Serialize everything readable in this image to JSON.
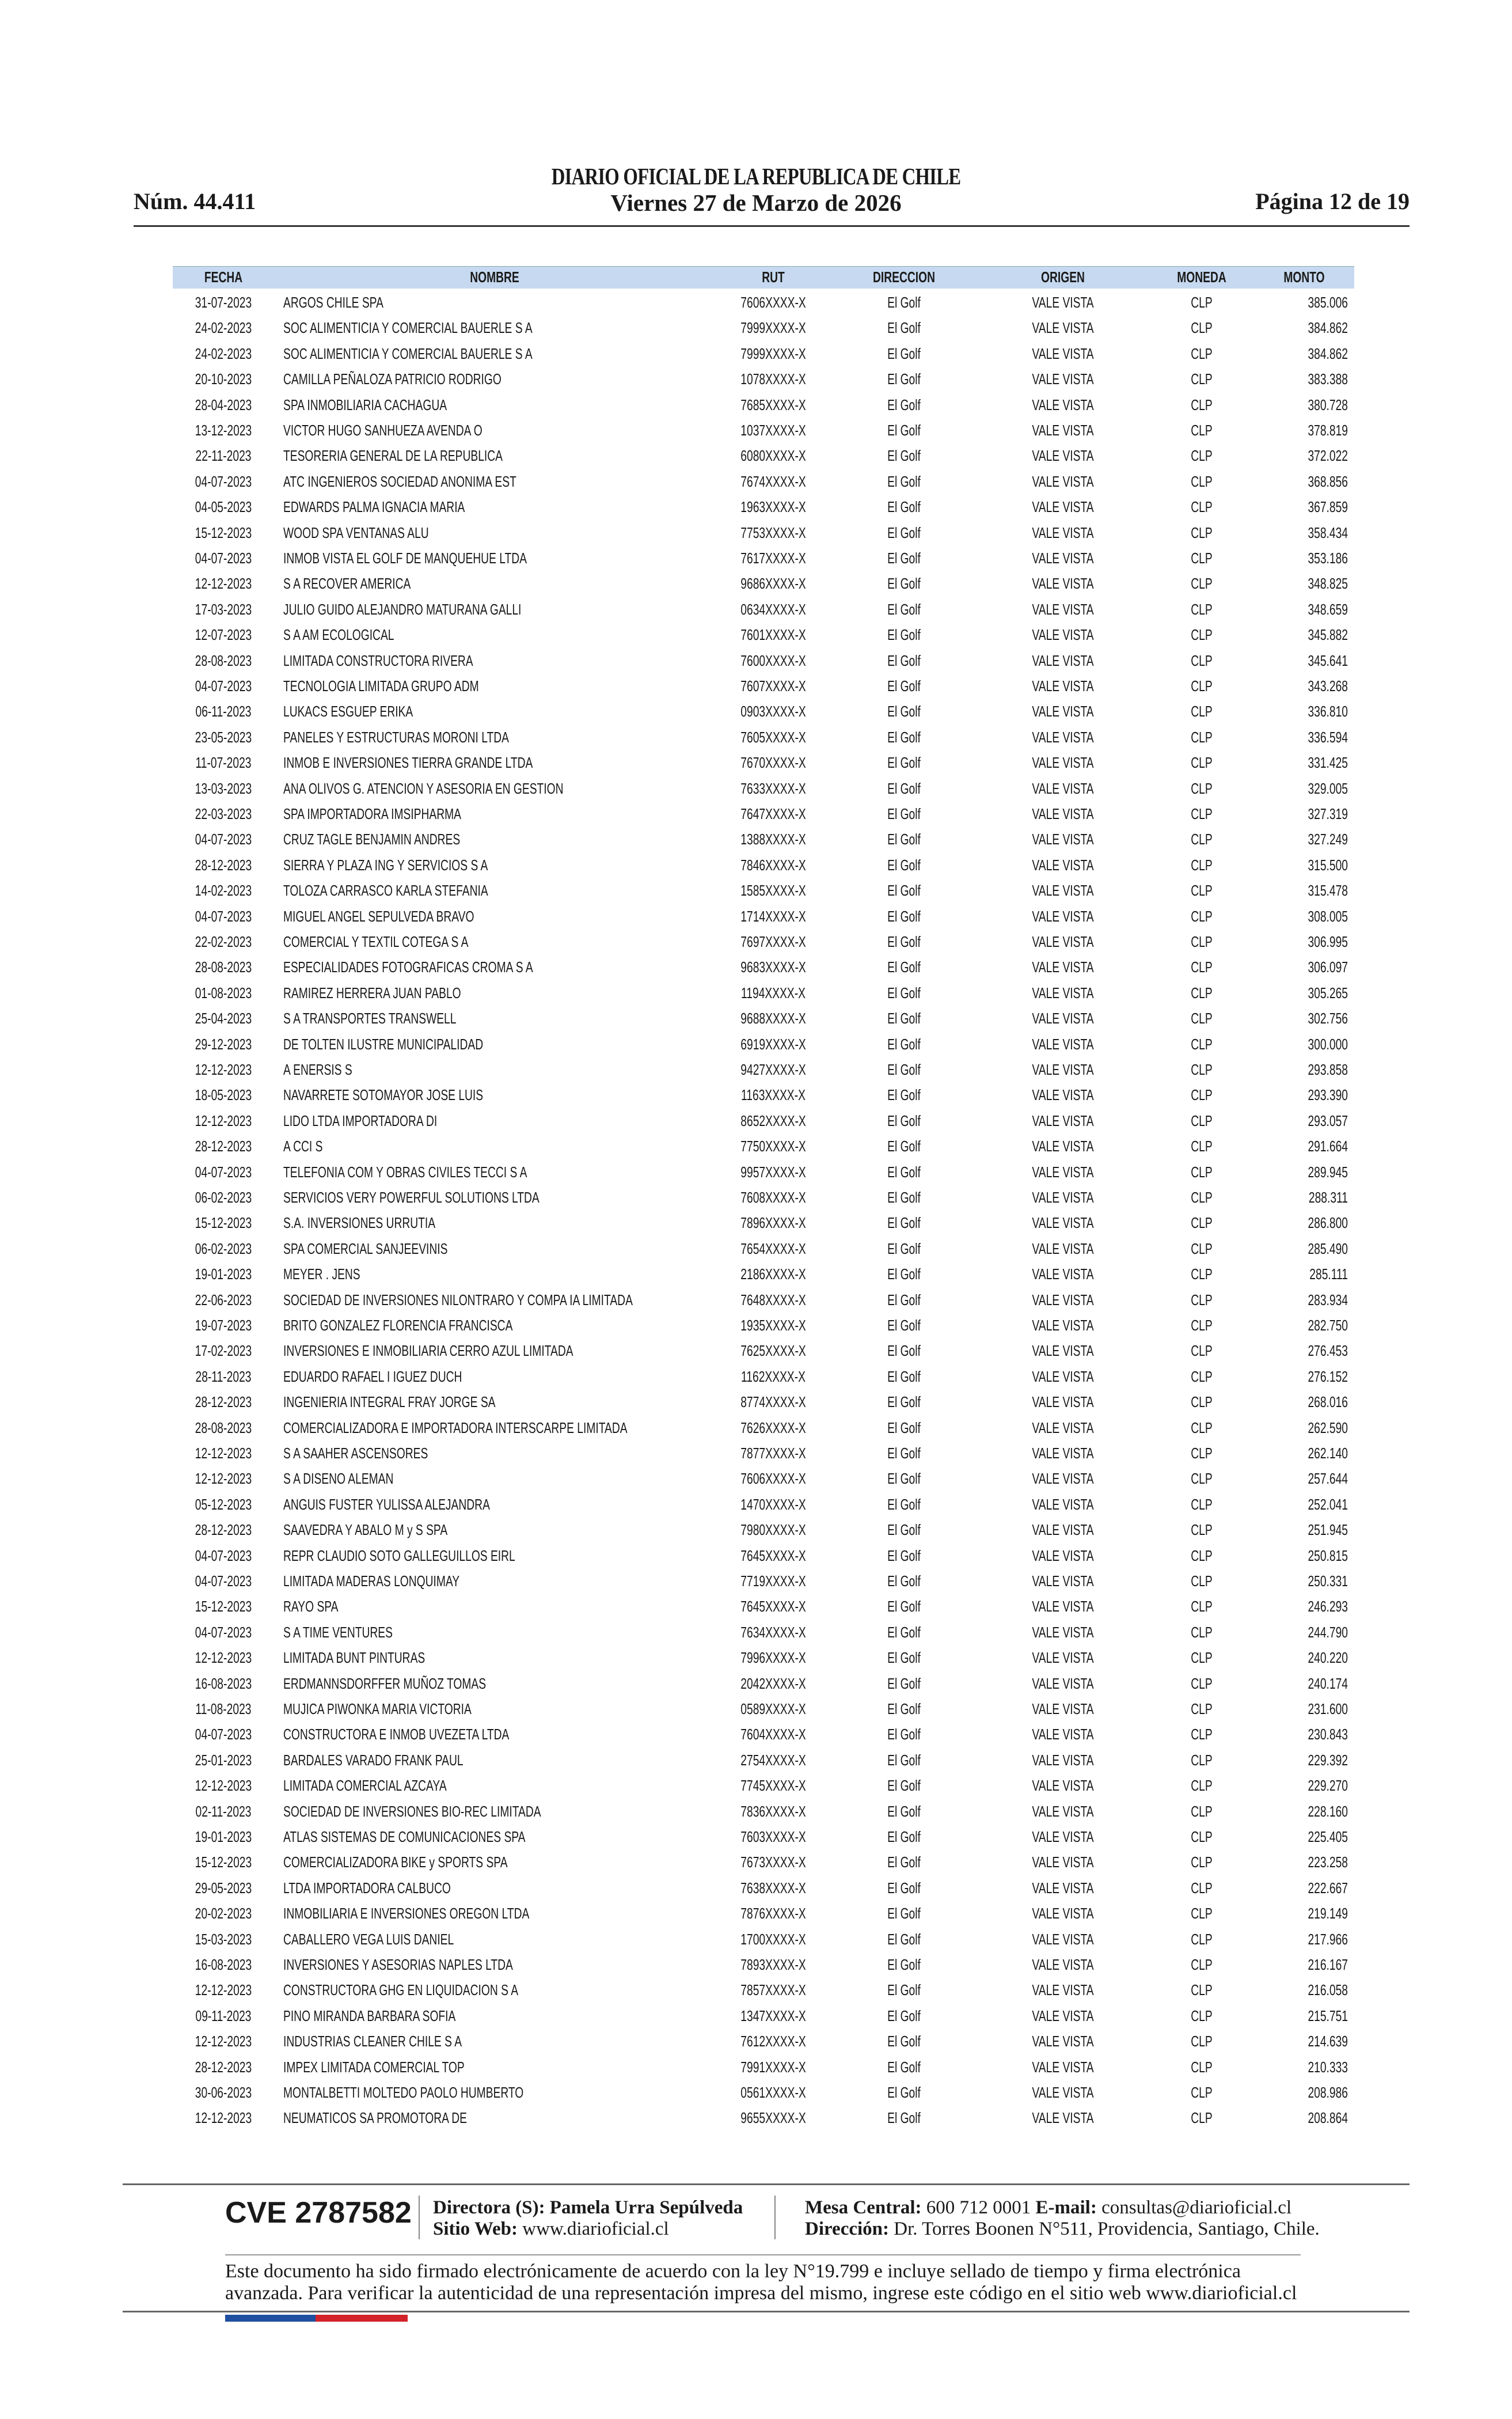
{
  "header": {
    "num": "Núm. 44.411",
    "title": "DIARIO OFICIAL DE LA REPUBLICA DE CHILE",
    "date": "Viernes 27 de Marzo de 2026",
    "page": "Página 12 de 19"
  },
  "table": {
    "columns": [
      "FECHA",
      "NOMBRE",
      "RUT",
      "DIRECCION",
      "ORIGEN",
      "MONEDA",
      "MONTO"
    ],
    "rows": [
      [
        "31-07-2023",
        "ARGOS  CHILE  SPA",
        "7606XXXX-X",
        "El Golf",
        "VALE VISTA",
        "CLP",
        "385.006"
      ],
      [
        "24-02-2023",
        "SOC ALIMENTICIA Y COMERCIAL BAUERLE S A",
        "7999XXXX-X",
        "El Golf",
        "VALE VISTA",
        "CLP",
        "384.862"
      ],
      [
        "24-02-2023",
        "SOC ALIMENTICIA Y COMERCIAL BAUERLE S A",
        "7999XXXX-X",
        "El Golf",
        "VALE VISTA",
        "CLP",
        "384.862"
      ],
      [
        "20-10-2023",
        "CAMILLA PEÑALOZA PATRICIO RODRIGO",
        "1078XXXX-X",
        "El Golf",
        "VALE VISTA",
        "CLP",
        "383.388"
      ],
      [
        "28-04-2023",
        "SPA INMOBILIARIA CACHAGUA",
        "7685XXXX-X",
        "El Golf",
        "VALE VISTA",
        "CLP",
        "380.728"
      ],
      [
        "13-12-2023",
        "VICTOR HUGO SANHUEZA AVENDA O",
        "1037XXXX-X",
        "El Golf",
        "VALE VISTA",
        "CLP",
        "378.819"
      ],
      [
        "22-11-2023",
        "TESORERIA GENERAL DE LA REPUBLICA",
        "6080XXXX-X",
        "El Golf",
        "VALE VISTA",
        "CLP",
        "372.022"
      ],
      [
        "04-07-2023",
        "ATC INGENIEROS SOCIEDAD ANONIMA EST",
        "7674XXXX-X",
        "El Golf",
        "VALE VISTA",
        "CLP",
        "368.856"
      ],
      [
        "04-05-2023",
        "EDWARDS PALMA IGNACIA MARIA",
        "1963XXXX-X",
        "El Golf",
        "VALE VISTA",
        "CLP",
        "367.859"
      ],
      [
        "15-12-2023",
        "WOOD SPA VENTANAS ALU",
        "7753XXXX-X",
        "El Golf",
        "VALE VISTA",
        "CLP",
        "358.434"
      ],
      [
        "04-07-2023",
        "INMOB VISTA EL GOLF DE MANQUEHUE LTDA",
        "7617XXXX-X",
        "El Golf",
        "VALE VISTA",
        "CLP",
        "353.186"
      ],
      [
        "12-12-2023",
        "S A RECOVER AMERICA",
        "9686XXXX-X",
        "El Golf",
        "VALE VISTA",
        "CLP",
        "348.825"
      ],
      [
        "17-03-2023",
        "JULIO GUIDO ALEJANDRO MATURANA GALLI",
        "0634XXXX-X",
        "El Golf",
        "VALE VISTA",
        "CLP",
        "348.659"
      ],
      [
        "12-07-2023",
        "S A AM ECOLOGICAL",
        "7601XXXX-X",
        "El Golf",
        "VALE VISTA",
        "CLP",
        "345.882"
      ],
      [
        "28-08-2023",
        "LIMITADA CONSTRUCTORA RIVERA",
        "7600XXXX-X",
        "El Golf",
        "VALE VISTA",
        "CLP",
        "345.641"
      ],
      [
        "04-07-2023",
        "TECNOLOGIA LIMITADA GRUPO ADM",
        "7607XXXX-X",
        "El Golf",
        "VALE VISTA",
        "CLP",
        "343.268"
      ],
      [
        "06-11-2023",
        "LUKACS ESGUEP ERIKA",
        "0903XXXX-X",
        "El Golf",
        "VALE VISTA",
        "CLP",
        "336.810"
      ],
      [
        "23-05-2023",
        "PANELES Y ESTRUCTURAS MORONI LTDA",
        "7605XXXX-X",
        "El Golf",
        "VALE VISTA",
        "CLP",
        "336.594"
      ],
      [
        "11-07-2023",
        "INMOB E INVERSIONES TIERRA GRANDE LTDA",
        "7670XXXX-X",
        "El Golf",
        "VALE VISTA",
        "CLP",
        "331.425"
      ],
      [
        "13-03-2023",
        "ANA OLIVOS G. ATENCION Y ASESORIA EN GESTION",
        "7633XXXX-X",
        "El Golf",
        "VALE VISTA",
        "CLP",
        "329.005"
      ],
      [
        "22-03-2023",
        "SPA IMPORTADORA IMSIPHARMA",
        "7647XXXX-X",
        "El Golf",
        "VALE VISTA",
        "CLP",
        "327.319"
      ],
      [
        "04-07-2023",
        "CRUZ TAGLE BENJAMIN ANDRES",
        "1388XXXX-X",
        "El Golf",
        "VALE VISTA",
        "CLP",
        "327.249"
      ],
      [
        "28-12-2023",
        "SIERRA Y PLAZA ING Y SERVICIOS S A",
        "7846XXXX-X",
        "El Golf",
        "VALE VISTA",
        "CLP",
        "315.500"
      ],
      [
        "14-02-2023",
        "TOLOZA CARRASCO KARLA STEFANIA",
        "1585XXXX-X",
        "El Golf",
        "VALE VISTA",
        "CLP",
        "315.478"
      ],
      [
        "04-07-2023",
        "MIGUEL ANGEL  SEPULVEDA BRAVO",
        "1714XXXX-X",
        "El Golf",
        "VALE VISTA",
        "CLP",
        "308.005"
      ],
      [
        "22-02-2023",
        "COMERCIAL Y TEXTIL COTEGA S A",
        "7697XXXX-X",
        "El Golf",
        "VALE VISTA",
        "CLP",
        "306.995"
      ],
      [
        "28-08-2023",
        "ESPECIALIDADES FOTOGRAFICAS CROMA S A",
        "9683XXXX-X",
        "El Golf",
        "VALE VISTA",
        "CLP",
        "306.097"
      ],
      [
        "01-08-2023",
        "RAMIREZ HERRERA JUAN PABLO",
        "1194XXXX-X",
        "El Golf",
        "VALE VISTA",
        "CLP",
        "305.265"
      ],
      [
        "25-04-2023",
        "S A TRANSPORTES TRANSWELL",
        "9688XXXX-X",
        "El Golf",
        "VALE VISTA",
        "CLP",
        "302.756"
      ],
      [
        "29-12-2023",
        "DE TOLTEN ILUSTRE MUNICIPALIDAD",
        "6919XXXX-X",
        "El Golf",
        "VALE VISTA",
        "CLP",
        "300.000"
      ],
      [
        "12-12-2023",
        "A ENERSIS S",
        "9427XXXX-X",
        "El Golf",
        "VALE VISTA",
        "CLP",
        "293.858"
      ],
      [
        "18-05-2023",
        "NAVARRETE SOTOMAYOR JOSE LUIS",
        "1163XXXX-X",
        "El Golf",
        "VALE VISTA",
        "CLP",
        "293.390"
      ],
      [
        "12-12-2023",
        "LIDO LTDA IMPORTADORA DI",
        "8652XXXX-X",
        "El Golf",
        "VALE VISTA",
        "CLP",
        "293.057"
      ],
      [
        "28-12-2023",
        "A CCI S",
        "7750XXXX-X",
        "El Golf",
        "VALE VISTA",
        "CLP",
        "291.664"
      ],
      [
        "04-07-2023",
        "TELEFONIA COM Y OBRAS CIVILES TECCI S A",
        "9957XXXX-X",
        "El Golf",
        "VALE VISTA",
        "CLP",
        "289.945"
      ],
      [
        "06-02-2023",
        "SERVICIOS VERY POWERFUL SOLUTIONS LTDA",
        "7608XXXX-X",
        "El Golf",
        "VALE VISTA",
        "CLP",
        "288.311"
      ],
      [
        "15-12-2023",
        "S.A. INVERSIONES URRUTIA",
        "7896XXXX-X",
        "El Golf",
        "VALE VISTA",
        "CLP",
        "286.800"
      ],
      [
        "06-02-2023",
        "SPA COMERCIAL SANJEEVINIS",
        "7654XXXX-X",
        "El Golf",
        "VALE VISTA",
        "CLP",
        "285.490"
      ],
      [
        "19-01-2023",
        "MEYER . JENS",
        "2186XXXX-X",
        "El Golf",
        "VALE VISTA",
        "CLP",
        "285.111"
      ],
      [
        "22-06-2023",
        "SOCIEDAD DE INVERSIONES NILONTRARO Y COMPA IA LIMITADA",
        "7648XXXX-X",
        "El Golf",
        "VALE VISTA",
        "CLP",
        "283.934"
      ],
      [
        "19-07-2023",
        "BRITO GONZALEZ FLORENCIA FRANCISCA",
        "1935XXXX-X",
        "El Golf",
        "VALE VISTA",
        "CLP",
        "282.750"
      ],
      [
        "17-02-2023",
        "INVERSIONES E INMOBILIARIA CERRO AZUL LIMITADA",
        "7625XXXX-X",
        "El Golf",
        "VALE VISTA",
        "CLP",
        "276.453"
      ],
      [
        "28-11-2023",
        "EDUARDO RAFAEL I IGUEZ DUCH",
        "1162XXXX-X",
        "El Golf",
        "VALE VISTA",
        "CLP",
        "276.152"
      ],
      [
        "28-12-2023",
        "INGENIERIA INTEGRAL FRAY JORGE SA",
        "8774XXXX-X",
        "El Golf",
        "VALE VISTA",
        "CLP",
        "268.016"
      ],
      [
        "28-08-2023",
        "COMERCIALIZADORA E IMPORTADORA INTERSCARPE LIMITADA",
        "7626XXXX-X",
        "El Golf",
        "VALE VISTA",
        "CLP",
        "262.590"
      ],
      [
        "12-12-2023",
        "S A SAAHER ASCENSORES",
        "7877XXXX-X",
        "El Golf",
        "VALE VISTA",
        "CLP",
        "262.140"
      ],
      [
        "12-12-2023",
        "S A DISENO ALEMAN",
        "7606XXXX-X",
        "El Golf",
        "VALE VISTA",
        "CLP",
        "257.644"
      ],
      [
        "05-12-2023",
        "ANGUIS FUSTER YULISSA ALEJANDRA",
        "1470XXXX-X",
        "El Golf",
        "VALE VISTA",
        "CLP",
        "252.041"
      ],
      [
        "28-12-2023",
        "SAAVEDRA Y ABALO M y S SPA",
        "7980XXXX-X",
        "El Golf",
        "VALE VISTA",
        "CLP",
        "251.945"
      ],
      [
        "04-07-2023",
        "REPR CLAUDIO SOTO GALLEGUILLOS EIRL",
        "7645XXXX-X",
        "El Golf",
        "VALE VISTA",
        "CLP",
        "250.815"
      ],
      [
        "04-07-2023",
        "LIMITADA MADERAS LONQUIMAY",
        "7719XXXX-X",
        "El Golf",
        "VALE VISTA",
        "CLP",
        "250.331"
      ],
      [
        "15-12-2023",
        "RAYO SPA",
        "7645XXXX-X",
        "El Golf",
        "VALE VISTA",
        "CLP",
        "246.293"
      ],
      [
        "04-07-2023",
        "S A TIME VENTURES",
        "7634XXXX-X",
        "El Golf",
        "VALE VISTA",
        "CLP",
        "244.790"
      ],
      [
        "12-12-2023",
        "LIMITADA BUNT PINTURAS",
        "7996XXXX-X",
        "El Golf",
        "VALE VISTA",
        "CLP",
        "240.220"
      ],
      [
        "16-08-2023",
        "ERDMANNSDORFFER MUÑOZ TOMAS",
        "2042XXXX-X",
        "El Golf",
        "VALE VISTA",
        "CLP",
        "240.174"
      ],
      [
        "11-08-2023",
        "MUJICA PIWONKA MARIA VICTORIA",
        "0589XXXX-X",
        "El Golf",
        "VALE VISTA",
        "CLP",
        "231.600"
      ],
      [
        "04-07-2023",
        "CONSTRUCTORA E INMOB UVEZETA LTDA",
        "7604XXXX-X",
        "El Golf",
        "VALE VISTA",
        "CLP",
        "230.843"
      ],
      [
        "25-01-2023",
        "BARDALES VARADO FRANK PAUL",
        "2754XXXX-X",
        "El Golf",
        "VALE VISTA",
        "CLP",
        "229.392"
      ],
      [
        "12-12-2023",
        "LIMITADA COMERCIAL AZCAYA",
        "7745XXXX-X",
        "El Golf",
        "VALE VISTA",
        "CLP",
        "229.270"
      ],
      [
        "02-11-2023",
        "SOCIEDAD DE INVERSIONES BIO-REC LIMITADA",
        "7836XXXX-X",
        "El Golf",
        "VALE VISTA",
        "CLP",
        "228.160"
      ],
      [
        "19-01-2023",
        "ATLAS SISTEMAS DE COMUNICACIONES SPA",
        "7603XXXX-X",
        "El Golf",
        "VALE VISTA",
        "CLP",
        "225.405"
      ],
      [
        "15-12-2023",
        "COMERCIALIZADORA BIKE y SPORTS SPA",
        "7673XXXX-X",
        "El Golf",
        "VALE VISTA",
        "CLP",
        "223.258"
      ],
      [
        "29-05-2023",
        "LTDA IMPORTADORA CALBUCO",
        "7638XXXX-X",
        "El Golf",
        "VALE VISTA",
        "CLP",
        "222.667"
      ],
      [
        "20-02-2023",
        "INMOBILIARIA E INVERSIONES OREGON LTDA",
        "7876XXXX-X",
        "El Golf",
        "VALE VISTA",
        "CLP",
        "219.149"
      ],
      [
        "15-03-2023",
        "CABALLERO VEGA LUIS DANIEL",
        "1700XXXX-X",
        "El Golf",
        "VALE VISTA",
        "CLP",
        "217.966"
      ],
      [
        "16-08-2023",
        "INVERSIONES Y ASESORIAS NAPLES LTDA",
        "7893XXXX-X",
        "El Golf",
        "VALE VISTA",
        "CLP",
        "216.167"
      ],
      [
        "12-12-2023",
        "CONSTRUCTORA GHG EN LIQUIDACION S A",
        "7857XXXX-X",
        "El Golf",
        "VALE VISTA",
        "CLP",
        "216.058"
      ],
      [
        "09-11-2023",
        "PINO MIRANDA BARBARA SOFIA",
        "1347XXXX-X",
        "El Golf",
        "VALE VISTA",
        "CLP",
        "215.751"
      ],
      [
        "12-12-2023",
        "INDUSTRIAS CLEANER CHILE S A",
        "7612XXXX-X",
        "El Golf",
        "VALE VISTA",
        "CLP",
        "214.639"
      ],
      [
        "28-12-2023",
        "IMPEX LIMITADA COMERCIAL TOP",
        "7991XXXX-X",
        "El Golf",
        "VALE VISTA",
        "CLP",
        "210.333"
      ],
      [
        "30-06-2023",
        "MONTALBETTI MOLTEDO PAOLO HUMBERTO",
        "0561XXXX-X",
        "El Golf",
        "VALE VISTA",
        "CLP",
        "208.986"
      ],
      [
        "12-12-2023",
        "NEUMATICOS SA PROMOTORA DE",
        "9655XXXX-X",
        "El Golf",
        "VALE VISTA",
        "CLP",
        "208.864"
      ]
    ]
  },
  "footer": {
    "cve": "CVE 2787582",
    "directora": "Directora (S): Pamela Urra Sepúlveda",
    "web_label": "Sitio Web:",
    "web": "www.diarioficial.cl",
    "mesa_label": "Mesa Central:",
    "mesa": "600 712 0001",
    "email_label": "E-mail:",
    "email": "consultas@diarioficial.cl",
    "dir_label": "Dirección:",
    "dir": "Dr. Torres Boonen N°511, Providencia, Santiago, Chile.",
    "notice": [
      "Este documento ha sido firmado electrónicamente de acuerdo con la ley N°19.799 e incluye sellado de tiempo y firma electrónica",
      "avanzada. Para verificar la autenticidad de una representación impresa del mismo, ingrese este código en el sitio web www.diarioficial.cl"
    ]
  }
}
